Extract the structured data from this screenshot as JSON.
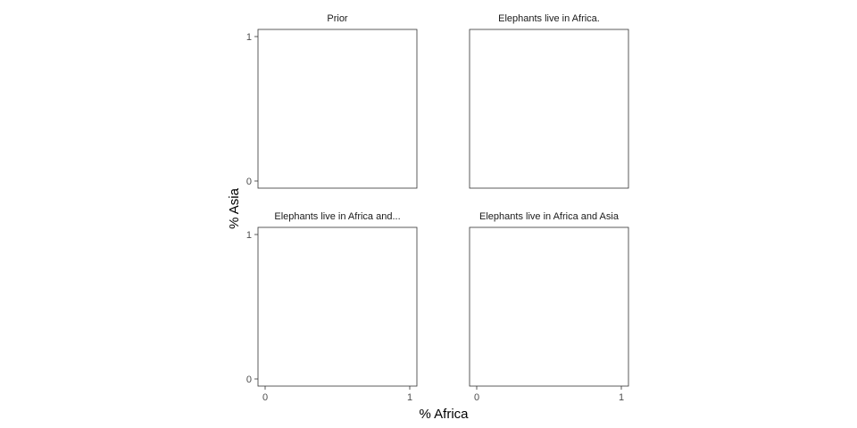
{
  "chart_data": {
    "type": "scatter",
    "layout": "facet-grid-2x2",
    "xlabel": "% Africa",
    "ylabel": "% Asia",
    "xlim": [
      0,
      1
    ],
    "ylim": [
      0,
      1
    ],
    "x_ticks": [
      "0",
      "1"
    ],
    "y_ticks": [
      "0",
      "1"
    ],
    "grid": false,
    "facets": [
      {
        "title": "Prior",
        "points": []
      },
      {
        "title": "Elephants live in Africa.",
        "points": []
      },
      {
        "title": "Elephants live in Africa and...",
        "points": []
      },
      {
        "title": "Elephants live in Africa and Asia",
        "points": []
      }
    ]
  },
  "colors": {
    "panel_border": "#333333",
    "text": "#1a1a1a",
    "tick_text": "#4d4d4d"
  }
}
